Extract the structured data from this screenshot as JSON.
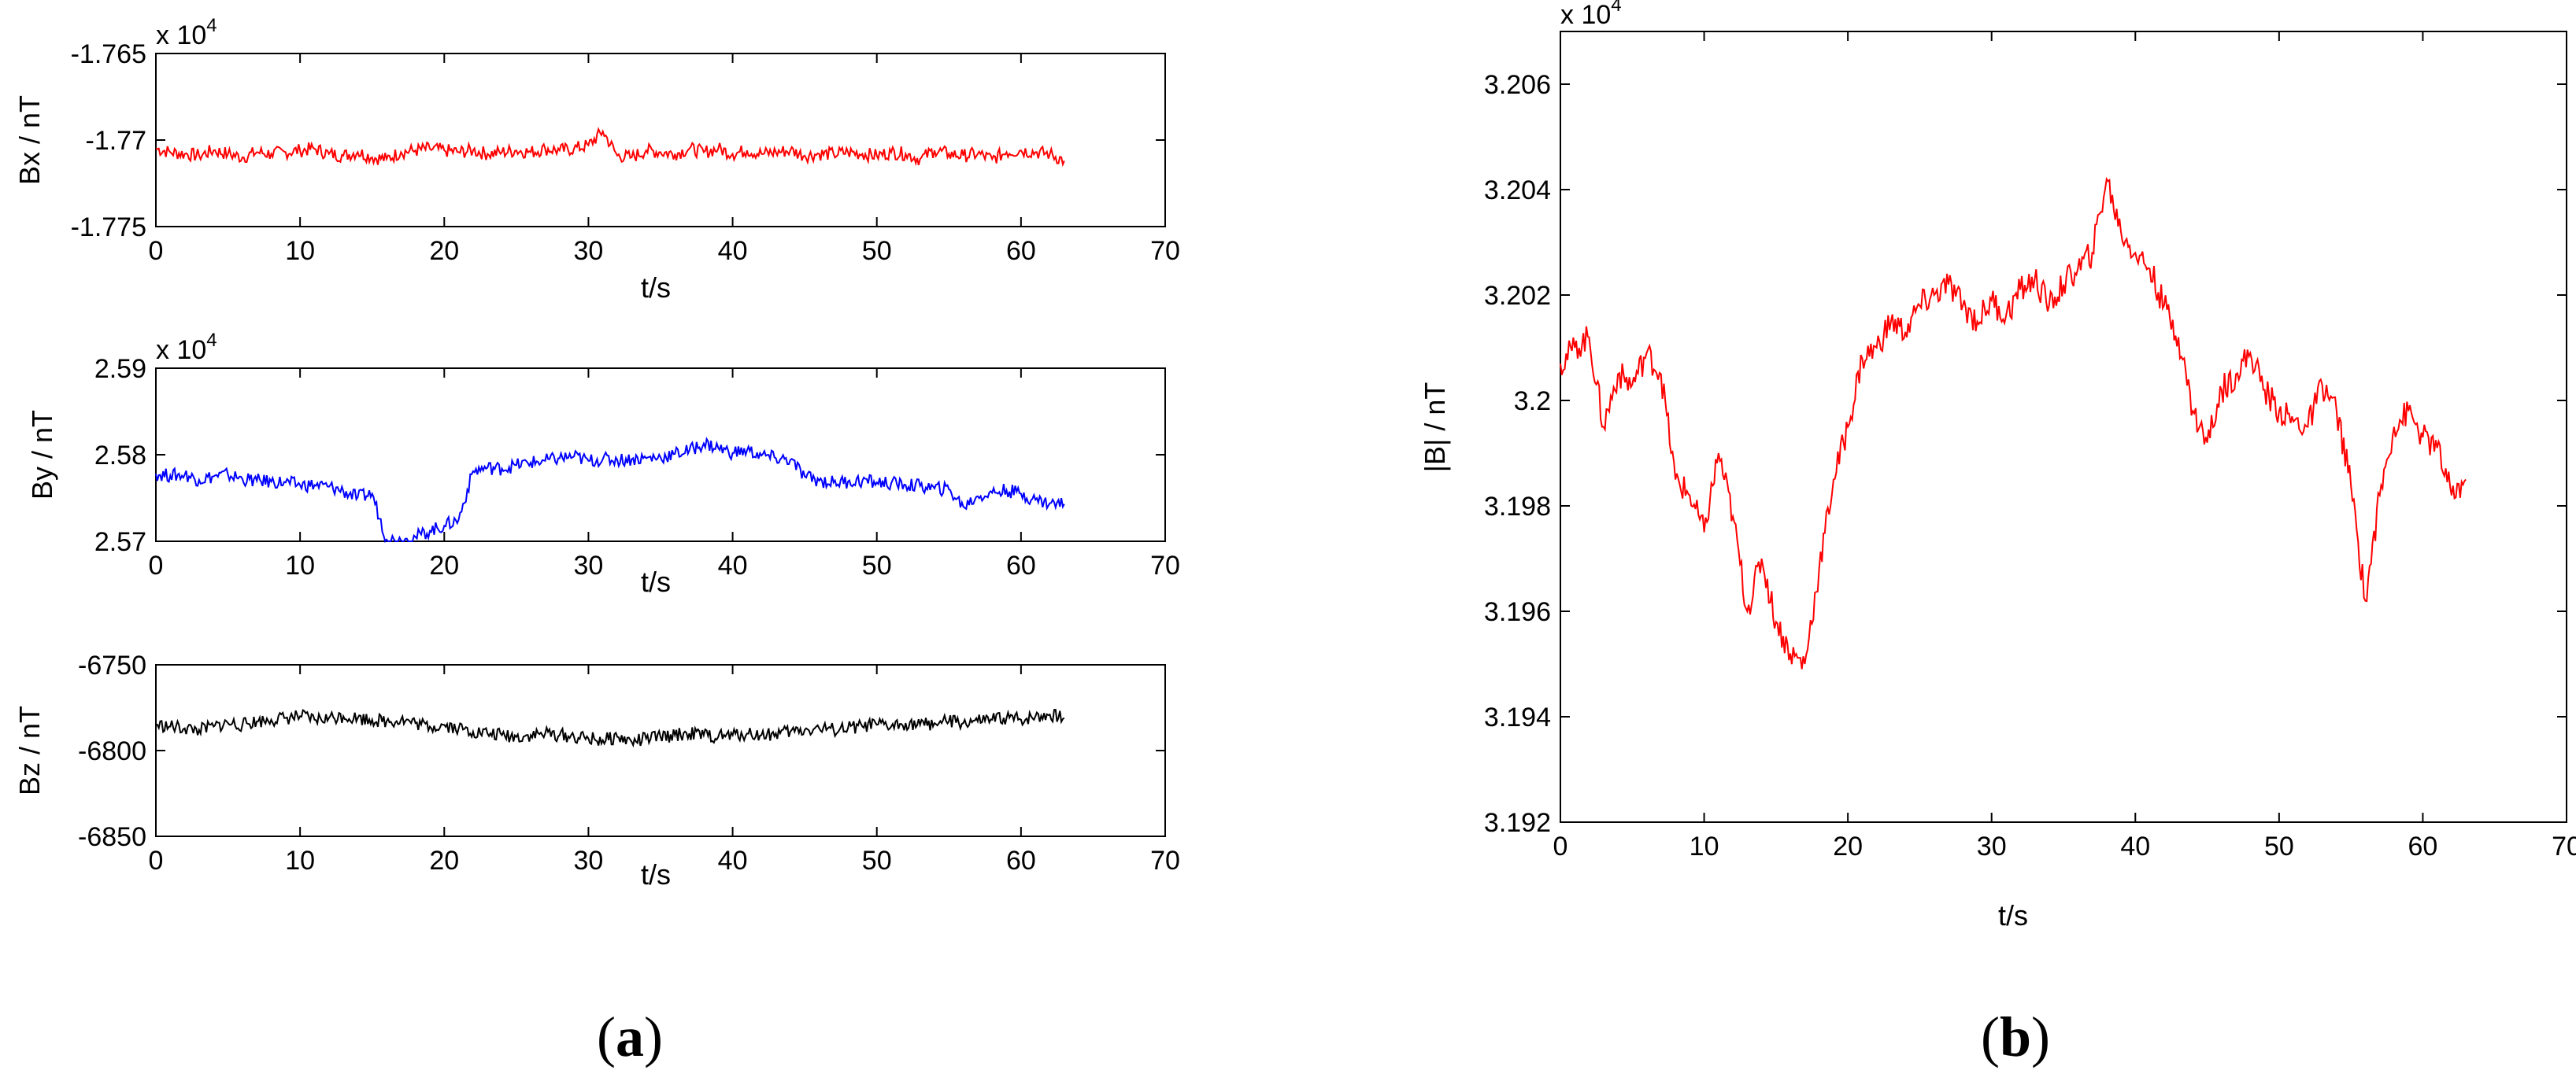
{
  "captions": {
    "a": "a",
    "b": "b"
  },
  "chart_data": [
    {
      "id": "bx",
      "type": "line",
      "xlabel": "t/s",
      "ylabel": "Bx / nT",
      "multiplier": "x 10",
      "multiplier_exp": "4",
      "xlim": [
        0,
        70
      ],
      "ylim": [
        -1.775,
        -1.765
      ],
      "xticks": [
        0,
        10,
        20,
        30,
        40,
        50,
        60,
        70
      ],
      "yticks": [
        -1.765,
        -1.77,
        -1.775
      ],
      "ytick_labels": [
        "-1.765",
        "-1.77",
        "-1.775"
      ],
      "series_color": "#ff0000",
      "x": [
        0,
        1,
        2,
        3,
        4,
        5,
        6,
        7,
        8,
        9,
        10,
        11,
        12,
        13,
        14,
        15,
        16,
        17,
        18,
        19,
        20,
        21,
        22,
        23,
        24,
        25,
        26,
        27,
        28,
        29,
        30,
        31,
        32,
        33,
        34,
        35,
        36,
        37,
        38,
        39,
        40,
        41,
        42,
        43,
        44,
        45,
        46,
        47,
        48,
        49,
        50,
        51,
        52,
        53,
        54,
        55,
        56,
        57,
        58,
        59,
        60,
        61,
        62,
        63
      ],
      "y": [
        -1.7705,
        -1.7707,
        -1.7708,
        -1.7709,
        -1.7706,
        -1.7708,
        -1.771,
        -1.7707,
        -1.7708,
        -1.7707,
        -1.7706,
        -1.7705,
        -1.7708,
        -1.7709,
        -1.7707,
        -1.771,
        -1.7711,
        -1.7707,
        -1.7706,
        -1.7705,
        -1.7706,
        -1.7707,
        -1.7706,
        -1.7708,
        -1.7707,
        -1.7706,
        -1.7707,
        -1.7705,
        -1.7706,
        -1.7705,
        -1.7703,
        -1.7695,
        -1.7709,
        -1.771,
        -1.7706,
        -1.7707,
        -1.7708,
        -1.7705,
        -1.7707,
        -1.7705,
        -1.7708,
        -1.7706,
        -1.7708,
        -1.7707,
        -1.7706,
        -1.7709,
        -1.7708,
        -1.7708,
        -1.7707,
        -1.7708,
        -1.7709,
        -1.7707,
        -1.7708,
        -1.7711,
        -1.7706,
        -1.7708,
        -1.7709,
        -1.7708,
        -1.7711,
        -1.7707,
        -1.7706,
        -1.7707,
        -1.7708,
        -1.7712
      ]
    },
    {
      "id": "by",
      "type": "line",
      "xlabel": "t/s",
      "ylabel": "By / nT",
      "multiplier": "x 10",
      "multiplier_exp": "4",
      "xlim": [
        0,
        70
      ],
      "ylim": [
        2.57,
        2.59
      ],
      "xticks": [
        0,
        10,
        20,
        30,
        40,
        50,
        60,
        70
      ],
      "yticks": [
        2.59,
        2.58,
        2.57
      ],
      "ytick_labels": [
        "2.59",
        "2.58",
        "2.57"
      ],
      "series_color": "#0000ff",
      "x": [
        0,
        1,
        2,
        3,
        4,
        5,
        6,
        7,
        8,
        9,
        10,
        11,
        12,
        13,
        14,
        15,
        16,
        17,
        18,
        19,
        20,
        21,
        22,
        23,
        24,
        25,
        26,
        27,
        28,
        29,
        30,
        31,
        32,
        33,
        34,
        35,
        36,
        37,
        38,
        39,
        40,
        41,
        42,
        43,
        44,
        45,
        46,
        47,
        48,
        49,
        50,
        51,
        52,
        53,
        54,
        55,
        56,
        57,
        58,
        59,
        60,
        61,
        62,
        63
      ],
      "y": [
        2.5778,
        2.5776,
        2.5777,
        2.5771,
        2.5775,
        2.5777,
        2.5772,
        2.577,
        2.5769,
        2.5768,
        2.5765,
        2.5765,
        2.5763,
        2.5758,
        2.5751,
        2.5755,
        2.5702,
        2.5701,
        2.5705,
        2.5712,
        2.5718,
        2.5725,
        2.5781,
        2.5785,
        2.5784,
        2.5788,
        2.5791,
        2.5793,
        2.5796,
        2.5798,
        2.5793,
        2.5795,
        2.5794,
        2.5795,
        2.5796,
        2.5797,
        2.5801,
        2.5805,
        2.5813,
        2.5808,
        2.5802,
        2.5805,
        2.5799,
        2.5796,
        2.5794,
        2.5775,
        2.577,
        2.5768,
        2.5769,
        2.577,
        2.5768,
        2.5767,
        2.5765,
        2.5764,
        2.5761,
        2.576,
        2.574,
        2.5752,
        2.5756,
        2.5759,
        2.5755,
        2.5748,
        2.5744,
        2.5743
      ]
    },
    {
      "id": "bz",
      "type": "line",
      "xlabel": "t/s",
      "ylabel": "Bz / nT",
      "xlim": [
        0,
        70
      ],
      "ylim": [
        -6850,
        -6750
      ],
      "xticks": [
        0,
        10,
        20,
        30,
        40,
        50,
        60,
        70
      ],
      "yticks": [
        -6750,
        -6800,
        -6850
      ],
      "ytick_labels": [
        "-6750",
        "-6800",
        "-6850"
      ],
      "series_color": "#000000",
      "x": [
        0,
        1,
        2,
        3,
        4,
        5,
        6,
        7,
        8,
        9,
        10,
        11,
        12,
        13,
        14,
        15,
        16,
        17,
        18,
        19,
        20,
        21,
        22,
        23,
        24,
        25,
        26,
        27,
        28,
        29,
        30,
        31,
        32,
        33,
        34,
        35,
        36,
        37,
        38,
        39,
        40,
        41,
        42,
        43,
        44,
        45,
        46,
        47,
        48,
        49,
        50,
        51,
        52,
        53,
        54,
        55,
        56,
        57,
        58,
        59,
        60,
        61,
        62,
        63
      ],
      "y": [
        -6785,
        -6786,
        -6787,
        -6788,
        -6786,
        -6784,
        -6785,
        -6783,
        -6782,
        -6781,
        -6780,
        -6782,
        -6781,
        -6780,
        -6781,
        -6782,
        -6783,
        -6782,
        -6784,
        -6786,
        -6785,
        -6787,
        -6789,
        -6790,
        -6791,
        -6792,
        -6791,
        -6790,
        -6791,
        -6792,
        -6793,
        -6794,
        -6792,
        -6795,
        -6793,
        -6792,
        -6791,
        -6790,
        -6791,
        -6792,
        -6791,
        -6790,
        -6791,
        -6790,
        -6789,
        -6788,
        -6787,
        -6788,
        -6787,
        -6786,
        -6785,
        -6786,
        -6784,
        -6785,
        -6784,
        -6783,
        -6784,
        -6783,
        -6782,
        -6781,
        -6782,
        -6780,
        -6779,
        -6781
      ]
    },
    {
      "id": "bmag",
      "type": "line",
      "xlabel": "t/s",
      "ylabel": "|B| / nT",
      "multiplier": "x 10",
      "multiplier_exp": "4",
      "xlim": [
        0,
        70
      ],
      "ylim": [
        3.192,
        3.207
      ],
      "xticks": [
        0,
        10,
        20,
        30,
        40,
        50,
        60,
        70
      ],
      "yticks": [
        3.206,
        3.204,
        3.202,
        3.2,
        3.198,
        3.196,
        3.194,
        3.192
      ],
      "ytick_labels": [
        "3.206",
        "3.204",
        "3.202",
        "3.2",
        "3.198",
        "3.196",
        "3.194",
        "3.192"
      ],
      "series_color": "#ff0000",
      "x": [
        0,
        1,
        2,
        3,
        4,
        5,
        6,
        7,
        8,
        9,
        10,
        11,
        12,
        13,
        14,
        15,
        16,
        17,
        18,
        19,
        20,
        21,
        22,
        23,
        24,
        25,
        26,
        27,
        28,
        29,
        30,
        31,
        32,
        33,
        34,
        35,
        36,
        37,
        38,
        39,
        40,
        41,
        42,
        43,
        44,
        45,
        46,
        47,
        48,
        49,
        50,
        51,
        52,
        53,
        54,
        55,
        56,
        57,
        58,
        59,
        60,
        61,
        62,
        63
      ],
      "y": [
        3.2007,
        3.201,
        3.2012,
        3.1995,
        3.2005,
        3.2003,
        3.2009,
        3.2005,
        3.1985,
        3.1982,
        3.1975,
        3.199,
        3.1978,
        3.196,
        3.197,
        3.1958,
        3.1952,
        3.195,
        3.1968,
        3.1985,
        3.1995,
        3.2008,
        3.201,
        3.2015,
        3.2013,
        3.2018,
        3.202,
        3.2022,
        3.2018,
        3.2015,
        3.2019,
        3.2016,
        3.2021,
        3.2023,
        3.2018,
        3.2022,
        3.2025,
        3.2028,
        3.2042,
        3.2032,
        3.2028,
        3.2025,
        3.2018,
        3.2012,
        3.1998,
        3.1992,
        3.2002,
        3.2005,
        3.2009,
        3.2002,
        3.1998,
        3.1996,
        3.1995,
        3.2003,
        3.1998,
        3.1984,
        3.1962,
        3.1982,
        3.1995,
        3.1998,
        3.1993,
        3.1991,
        3.1982,
        3.1985
      ]
    }
  ]
}
